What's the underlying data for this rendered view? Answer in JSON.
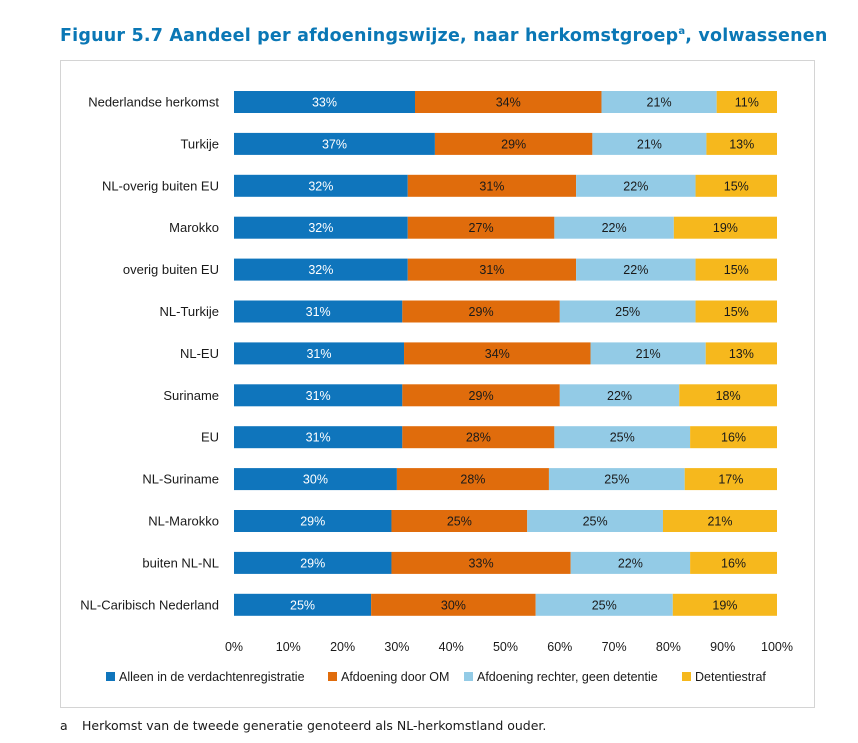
{
  "title": {
    "main": "Figuur 5.7  Aandeel per afdoeningswijze, naar herkomstgroep",
    "sup": "a",
    "rest": ", volwassenen"
  },
  "footnote": {
    "marker": "a",
    "text": "Herkomst van de tweede generatie genoteerd als NL-herkomstland ouder."
  },
  "chart_data": {
    "type": "bar",
    "orientation": "horizontal",
    "stacked": true,
    "percent": true,
    "categories": [
      "Nederlandse herkomst",
      "Turkije",
      "NL-overig buiten EU",
      "Marokko",
      "overig buiten EU",
      "NL-Turkije",
      "NL-EU",
      "Suriname",
      "EU",
      "NL-Suriname",
      "NL-Marokko",
      "buiten NL-NL",
      "NL-Caribisch Nederland"
    ],
    "series": [
      {
        "name": "Alleen in de verdachtenregistratie",
        "color": "#0f75bc",
        "label_color": "#ffffff",
        "values": [
          33,
          37,
          32,
          32,
          32,
          31,
          31,
          31,
          31,
          30,
          29,
          29,
          25
        ],
        "labels": [
          "33%",
          "37%",
          "32%",
          "32%",
          "32%",
          "31%",
          "31%",
          "31%",
          "31%",
          "30%",
          "29%",
          "29%",
          "25%"
        ]
      },
      {
        "name": "Afdoening door OM",
        "color": "#e06c0c",
        "label_color": "#1a1a1a",
        "values": [
          34,
          29,
          31,
          27,
          31,
          29,
          34,
          29,
          28,
          28,
          25,
          33,
          30
        ],
        "labels": [
          "34%",
          "29%",
          "31%",
          "27%",
          "31%",
          "29%",
          "34%",
          "29%",
          "28%",
          "28%",
          "25%",
          "33%",
          "30%"
        ]
      },
      {
        "name": "Afdoening rechter, geen detentie",
        "color": "#93cbe6",
        "label_color": "#1a1a1a",
        "values": [
          21,
          21,
          22,
          22,
          22,
          25,
          21,
          22,
          25,
          25,
          25,
          22,
          25
        ],
        "labels": [
          "21%",
          "21%",
          "22%",
          "22%",
          "22%",
          "25%",
          "21%",
          "22%",
          "25%",
          "25%",
          "25%",
          "22%",
          "25%"
        ]
      },
      {
        "name": "Detentiestraf",
        "color": "#f6b81d",
        "label_color": "#1a1a1a",
        "values": [
          11,
          13,
          15,
          19,
          15,
          15,
          13,
          18,
          16,
          17,
          21,
          16,
          19
        ],
        "labels": [
          "11%",
          "13%",
          "15%",
          "19%",
          "15%",
          "15%",
          "13%",
          "18%",
          "16%",
          "17%",
          "21%",
          "16%",
          "19%"
        ]
      }
    ],
    "xlim": [
      0,
      100
    ],
    "xticks": [
      0,
      10,
      20,
      30,
      40,
      50,
      60,
      70,
      80,
      90,
      100
    ],
    "xtick_labels": [
      "0%",
      "10%",
      "20%",
      "30%",
      "40%",
      "50%",
      "60%",
      "70%",
      "80%",
      "90%",
      "100%"
    ],
    "grid": false,
    "legend_position": "bottom"
  }
}
